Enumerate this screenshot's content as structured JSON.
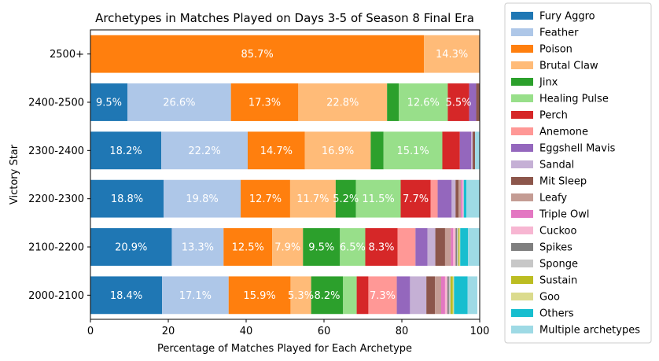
{
  "chart_data": {
    "type": "bar",
    "orientation": "horizontal",
    "stacked": true,
    "title": "Archetypes in Matches Played on Days 3-5 of Season 8 Final Era",
    "xlabel": "Percentage of Matches Played for Each Archetype",
    "ylabel": "Victory Star",
    "xlim": [
      0,
      100
    ],
    "xticks": [
      0,
      20,
      40,
      60,
      80,
      100
    ],
    "grid": false,
    "legend_position": "outside-right",
    "categories": [
      "2500+",
      "2400-2500",
      "2300-2400",
      "2200-2300",
      "2100-2200",
      "2000-2100"
    ],
    "series": [
      {
        "name": "Fury Aggro",
        "color": "#1f77b4",
        "values": [
          0,
          9.5,
          18.2,
          18.8,
          20.9,
          18.4
        ]
      },
      {
        "name": "Feather",
        "color": "#aec7e8",
        "values": [
          0,
          26.6,
          22.2,
          19.8,
          13.3,
          17.1
        ]
      },
      {
        "name": "Poison",
        "color": "#ff7f0e",
        "values": [
          85.7,
          17.3,
          14.7,
          12.7,
          12.5,
          15.9
        ]
      },
      {
        "name": "Brutal Claw",
        "color": "#ffbb78",
        "values": [
          14.3,
          22.8,
          16.9,
          11.7,
          7.9,
          5.3
        ]
      },
      {
        "name": "Jinx",
        "color": "#2ca02c",
        "values": [
          0,
          3.0,
          3.3,
          5.2,
          9.5,
          8.2
        ]
      },
      {
        "name": "Healing Pulse",
        "color": "#98df8a",
        "values": [
          0,
          12.6,
          15.1,
          11.5,
          6.5,
          3.5
        ]
      },
      {
        "name": "Perch",
        "color": "#d62728",
        "values": [
          0,
          5.5,
          4.5,
          7.7,
          8.3,
          3.0
        ]
      },
      {
        "name": "Anemone",
        "color": "#ff9896",
        "values": [
          0,
          0,
          0,
          1.8,
          4.6,
          7.3
        ]
      },
      {
        "name": "Eggshell Mavis",
        "color": "#9467bd",
        "values": [
          0,
          1.8,
          2.9,
          3.6,
          3.1,
          3.4
        ]
      },
      {
        "name": "Sandal",
        "color": "#c5b0d5",
        "values": [
          0,
          0,
          0.4,
          1.0,
          2.0,
          4.2
        ]
      },
      {
        "name": "Mit Sleep",
        "color": "#8c564b",
        "values": [
          0,
          0.9,
          0.6,
          0.8,
          2.5,
          2.2
        ]
      },
      {
        "name": "Leafy",
        "color": "#c49c94",
        "values": [
          0,
          0,
          0,
          0.6,
          1.5,
          1.6
        ]
      },
      {
        "name": "Triple Owl",
        "color": "#e377c2",
        "values": [
          0,
          0,
          0,
          0.4,
          0.6,
          1.0
        ]
      },
      {
        "name": "Cuckoo",
        "color": "#f7b6d2",
        "values": [
          0,
          0,
          0,
          0.3,
          0.6,
          0.6
        ]
      },
      {
        "name": "Spikes",
        "color": "#7f7f7f",
        "values": [
          0,
          0,
          0,
          0,
          0.4,
          0.4
        ]
      },
      {
        "name": "Sponge",
        "color": "#c7c7c7",
        "values": [
          0,
          0,
          0,
          0,
          0.3,
          0.4
        ]
      },
      {
        "name": "Sustain",
        "color": "#bcbd22",
        "values": [
          0,
          0,
          0,
          0,
          0.3,
          0.6
        ]
      },
      {
        "name": "Goo",
        "color": "#dbdb8d",
        "values": [
          0,
          0,
          0,
          0,
          0.2,
          0.3
        ]
      },
      {
        "name": "Others",
        "color": "#17becf",
        "values": [
          0,
          0,
          0,
          0.7,
          2.0,
          3.5
        ]
      },
      {
        "name": "Multiple archetypes",
        "color": "#9edae5",
        "values": [
          0,
          0,
          1.2,
          3.4,
          3.0,
          2.5
        ]
      }
    ],
    "data_labels": [
      {
        "category": "2500+",
        "series": "Poison",
        "text": "85.7%"
      },
      {
        "category": "2500+",
        "series": "Brutal Claw",
        "text": "14.3%"
      },
      {
        "category": "2400-2500",
        "series": "Fury Aggro",
        "text": "9.5%"
      },
      {
        "category": "2400-2500",
        "series": "Feather",
        "text": "26.6%"
      },
      {
        "category": "2400-2500",
        "series": "Poison",
        "text": "17.3%"
      },
      {
        "category": "2400-2500",
        "series": "Brutal Claw",
        "text": "22.8%"
      },
      {
        "category": "2400-2500",
        "series": "Healing Pulse",
        "text": "12.6%"
      },
      {
        "category": "2400-2500",
        "series": "Perch",
        "text": "5.5%"
      },
      {
        "category": "2300-2400",
        "series": "Fury Aggro",
        "text": "18.2%"
      },
      {
        "category": "2300-2400",
        "series": "Feather",
        "text": "22.2%"
      },
      {
        "category": "2300-2400",
        "series": "Poison",
        "text": "14.7%"
      },
      {
        "category": "2300-2400",
        "series": "Brutal Claw",
        "text": "16.9%"
      },
      {
        "category": "2300-2400",
        "series": "Healing Pulse",
        "text": "15.1%"
      },
      {
        "category": "2200-2300",
        "series": "Fury Aggro",
        "text": "18.8%"
      },
      {
        "category": "2200-2300",
        "series": "Feather",
        "text": "19.8%"
      },
      {
        "category": "2200-2300",
        "series": "Poison",
        "text": "12.7%"
      },
      {
        "category": "2200-2300",
        "series": "Brutal Claw",
        "text": "11.7%"
      },
      {
        "category": "2200-2300",
        "series": "Jinx",
        "text": "5.2%"
      },
      {
        "category": "2200-2300",
        "series": "Healing Pulse",
        "text": "11.5%"
      },
      {
        "category": "2200-2300",
        "series": "Perch",
        "text": "7.7%"
      },
      {
        "category": "2100-2200",
        "series": "Fury Aggro",
        "text": "20.9%"
      },
      {
        "category": "2100-2200",
        "series": "Feather",
        "text": "13.3%"
      },
      {
        "category": "2100-2200",
        "series": "Poison",
        "text": "12.5%"
      },
      {
        "category": "2100-2200",
        "series": "Brutal Claw",
        "text": "7.9%"
      },
      {
        "category": "2100-2200",
        "series": "Jinx",
        "text": "9.5%"
      },
      {
        "category": "2100-2200",
        "series": "Healing Pulse",
        "text": "6.5%"
      },
      {
        "category": "2100-2200",
        "series": "Perch",
        "text": "8.3%"
      },
      {
        "category": "2000-2100",
        "series": "Fury Aggro",
        "text": "18.4%"
      },
      {
        "category": "2000-2100",
        "series": "Feather",
        "text": "17.1%"
      },
      {
        "category": "2000-2100",
        "series": "Poison",
        "text": "15.9%"
      },
      {
        "category": "2000-2100",
        "series": "Brutal Claw",
        "text": "5.3%"
      },
      {
        "category": "2000-2100",
        "series": "Jinx",
        "text": "8.2%"
      },
      {
        "category": "2000-2100",
        "series": "Anemone",
        "text": "7.3%"
      }
    ]
  }
}
